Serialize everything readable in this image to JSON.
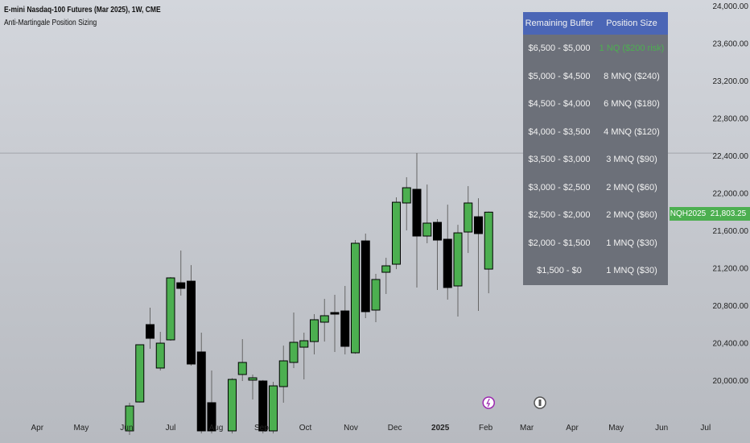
{
  "header": {
    "title": "E-mini Nasdaq-100 Futures (Mar 2025), 1W, CME",
    "indicator": "Anti-Martingale Position Sizing"
  },
  "colors": {
    "up": "#4caf50",
    "down": "#000000",
    "table_header": "#4b66b6",
    "table_body": "#6c7079",
    "highlight_text": "#4caf50",
    "price_tag": "#4caf50"
  },
  "table": {
    "headers": [
      "Remaining Buffer",
      "Position Size"
    ],
    "rows": [
      [
        "$6,500 - $5,000",
        "1 NQ ($200 risk)"
      ],
      [
        "$5,000 - $4,500",
        "8 MNQ ($240)"
      ],
      [
        "$4,500 - $4,000",
        "6 MNQ ($180)"
      ],
      [
        "$4,000 - $3,500",
        "4 MNQ ($120)"
      ],
      [
        "$3,500 - $3,000",
        "3 MNQ ($90)"
      ],
      [
        "$3,000 - $2,500",
        "2 MNQ ($60)"
      ],
      [
        "$2,500 - $2,000",
        "2 MNQ ($60)"
      ],
      [
        "$2,000 - $1,500",
        "1 MNQ ($30)"
      ],
      [
        "$1,500 - $0",
        "1 MNQ ($30)"
      ]
    ]
  },
  "price_tag": {
    "symbol": "NQH2025",
    "price": "21,803.25"
  },
  "price_axis": [
    "24,000.00",
    "23,600.00",
    "23,200.00",
    "22,800.00",
    "22,400.00",
    "22,000.00",
    "21,600.00",
    "21,200.00",
    "20,800.00",
    "20,400.00",
    "20,000.00"
  ],
  "time_axis": [
    {
      "label": "Apr",
      "date": "2024-04-01"
    },
    {
      "label": "May",
      "date": "2024-05-01"
    },
    {
      "label": "Jun",
      "date": "2024-06-01"
    },
    {
      "label": "Jul",
      "date": "2024-07-01"
    },
    {
      "label": "Aug",
      "date": "2024-08-01"
    },
    {
      "label": "Sep",
      "date": "2024-09-01"
    },
    {
      "label": "Oct",
      "date": "2024-10-01"
    },
    {
      "label": "Nov",
      "date": "2024-11-01"
    },
    {
      "label": "Dec",
      "date": "2024-12-01"
    },
    {
      "label": "2025",
      "date": "2025-01-01"
    },
    {
      "label": "Feb",
      "date": "2025-02-01"
    },
    {
      "label": "Mar",
      "date": "2025-03-01"
    },
    {
      "label": "Apr",
      "date": "2025-04-01"
    },
    {
      "label": "May",
      "date": "2025-05-01"
    },
    {
      "label": "Jun",
      "date": "2025-06-01"
    },
    {
      "label": "Jul",
      "date": "2025-07-01"
    }
  ],
  "events": [
    {
      "icon": "lightning-icon",
      "date": "2025-02-03",
      "color": "#9c27b0"
    },
    {
      "icon": "earnings-icon",
      "date": "2025-03-10",
      "color": "#555555"
    }
  ],
  "crosshair_price": 22434,
  "chart_data": {
    "type": "candlestick",
    "ylim": [
      19440,
      24000
    ],
    "candles": [
      {
        "d": "2024-06-03",
        "o": 19467,
        "h": 19768,
        "l": 19424,
        "c": 19733
      },
      {
        "d": "2024-06-10",
        "o": 19776,
        "h": 20390,
        "l": 19770,
        "c": 20387
      },
      {
        "d": "2024-06-17",
        "o": 20602,
        "h": 20783,
        "l": 20344,
        "c": 20456
      },
      {
        "d": "2024-06-24",
        "o": 20138,
        "h": 20525,
        "l": 20112,
        "c": 20404
      },
      {
        "d": "2024-07-01",
        "o": 20439,
        "h": 21110,
        "l": 20430,
        "c": 21101
      },
      {
        "d": "2024-07-08",
        "o": 21049,
        "h": 21393,
        "l": 20912,
        "c": 20989
      },
      {
        "d": "2024-07-15",
        "o": 21066,
        "h": 21238,
        "l": 20163,
        "c": 20181
      },
      {
        "d": "2024-07-22",
        "o": 20310,
        "h": 20516,
        "l": 19440,
        "c": 19467
      },
      {
        "d": "2024-07-29",
        "o": 19768,
        "h": 20112,
        "l": 19440,
        "c": 19467
      },
      {
        "d": "2024-08-12",
        "o": 19467,
        "h": 20030,
        "l": 19440,
        "c": 20017
      },
      {
        "d": "2024-08-19",
        "o": 20069,
        "h": 20447,
        "l": 20000,
        "c": 20198
      },
      {
        "d": "2024-08-26",
        "o": 20009,
        "h": 20069,
        "l": 19802,
        "c": 20034
      },
      {
        "d": "2024-09-02",
        "o": 20000,
        "h": 20010,
        "l": 19440,
        "c": 19467
      },
      {
        "d": "2024-09-09",
        "o": 19467,
        "h": 19991,
        "l": 19440,
        "c": 19948
      },
      {
        "d": "2024-09-16",
        "o": 19940,
        "h": 20378,
        "l": 19768,
        "c": 20215
      },
      {
        "d": "2024-09-23",
        "o": 20198,
        "h": 20731,
        "l": 20138,
        "c": 20413
      },
      {
        "d": "2024-09-30",
        "o": 20361,
        "h": 20516,
        "l": 20017,
        "c": 20430
      },
      {
        "d": "2024-10-07",
        "o": 20421,
        "h": 20714,
        "l": 20284,
        "c": 20654
      },
      {
        "d": "2024-10-14",
        "o": 20628,
        "h": 20877,
        "l": 20421,
        "c": 20697
      },
      {
        "d": "2024-10-21",
        "o": 20731,
        "h": 20920,
        "l": 20310,
        "c": 20714
      },
      {
        "d": "2024-10-28",
        "o": 20748,
        "h": 21015,
        "l": 20284,
        "c": 20370
      },
      {
        "d": "2024-11-04",
        "o": 20301,
        "h": 21505,
        "l": 20290,
        "c": 21471
      },
      {
        "d": "2024-11-11",
        "o": 21496,
        "h": 21574,
        "l": 20671,
        "c": 20740
      },
      {
        "d": "2024-11-18",
        "o": 20757,
        "h": 21144,
        "l": 20628,
        "c": 21084
      },
      {
        "d": "2024-11-25",
        "o": 21161,
        "h": 21316,
        "l": 20929,
        "c": 21230
      },
      {
        "d": "2024-12-02",
        "o": 21247,
        "h": 21961,
        "l": 21195,
        "c": 21909
      },
      {
        "d": "2024-12-09",
        "o": 21901,
        "h": 22176,
        "l": 21608,
        "c": 22064
      },
      {
        "d": "2024-12-16",
        "o": 22047,
        "h": 22434,
        "l": 20998,
        "c": 21548
      },
      {
        "d": "2024-12-23",
        "o": 21548,
        "h": 22098,
        "l": 21471,
        "c": 21686
      },
      {
        "d": "2024-12-30",
        "o": 21694,
        "h": 21729,
        "l": 20972,
        "c": 21505
      },
      {
        "d": "2025-01-06",
        "o": 21514,
        "h": 21883,
        "l": 20869,
        "c": 20998
      },
      {
        "d": "2025-01-13",
        "o": 21015,
        "h": 21668,
        "l": 20688,
        "c": 21582
      },
      {
        "d": "2025-01-20",
        "o": 21591,
        "h": 22081,
        "l": 21367,
        "c": 21901
      },
      {
        "d": "2025-01-27",
        "o": 21754,
        "h": 21952,
        "l": 20748,
        "c": 21574
      },
      {
        "d": "2025-02-03",
        "o": 21195,
        "h": 21810,
        "l": 20937,
        "c": 21803.25
      }
    ]
  }
}
